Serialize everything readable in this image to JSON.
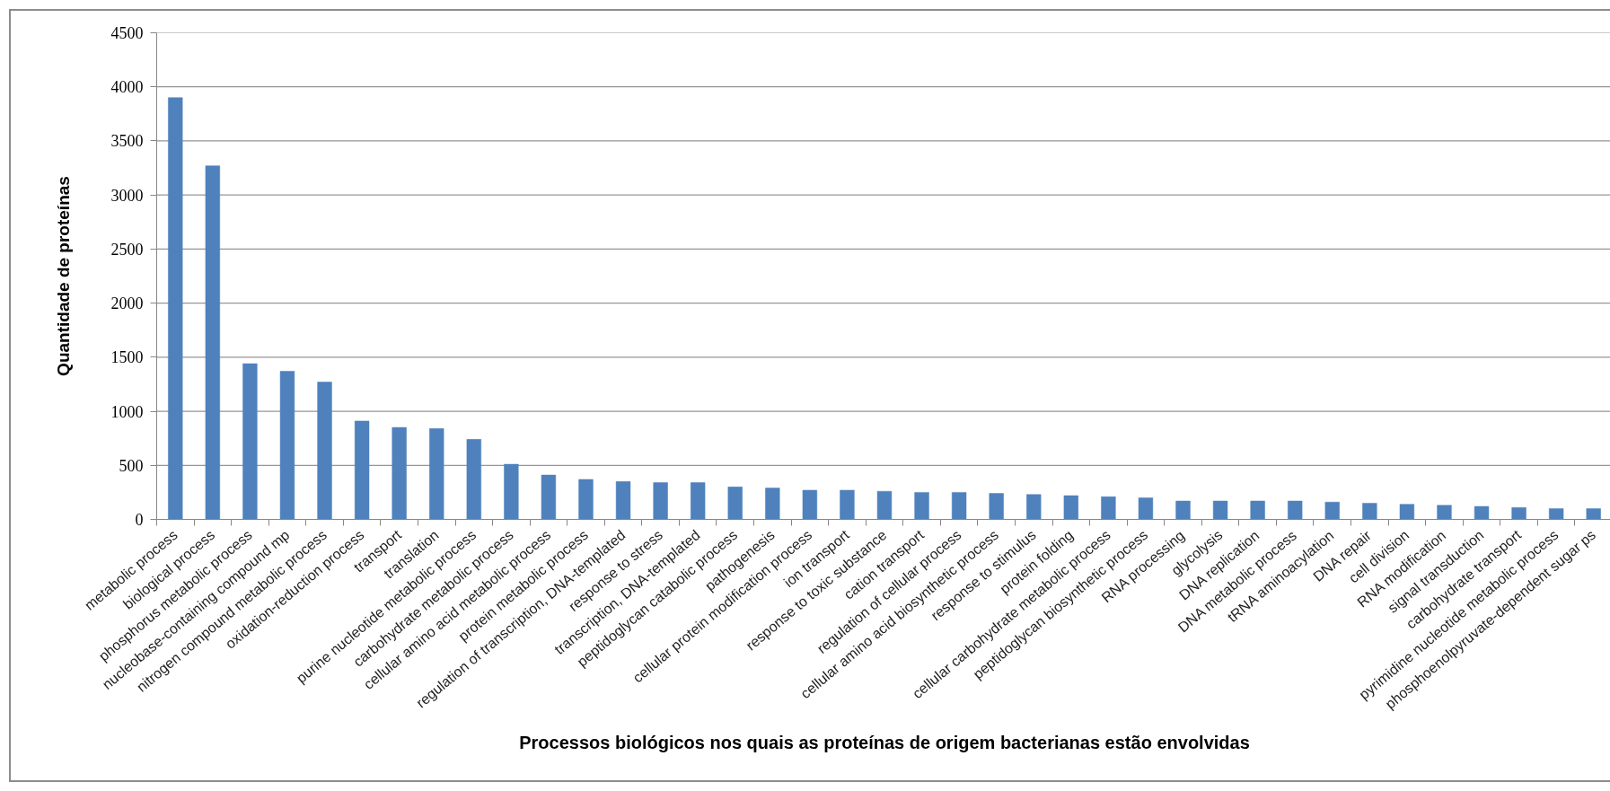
{
  "chart_data": {
    "type": "bar",
    "xlabel": "Processos biológicos nos quais as proteínas de origem bacterianas estão envolvidas",
    "ylabel": "Quantidade de proteínas",
    "categories": [
      "metabolic process",
      "biological process",
      "phosphorus metabolic process",
      "nucleobase-containing compound mp",
      "nitrogen compound metabolic process",
      "oxidation-reduction process",
      "transport",
      "translation",
      "purine nucleotide metabolic process",
      "carbohydrate metabolic process",
      "cellular amino acid metabolic process",
      "protein metabolic process",
      "regulation of transcription, DNA-templated",
      "response to stress",
      "transcription, DNA-templated",
      "peptidoglycan catabolic process",
      "pathogenesis",
      "cellular protein modification process",
      "ion transport",
      "response to toxic substance",
      "cation transport",
      "regulation of cellular process",
      "cellular amino acid biosynthetic process",
      "response to stimulus",
      "protein folding",
      "cellular carbohydrate metabolic process",
      "peptidoglycan biosynthetic process",
      "RNA processing",
      "glycolysis",
      "DNA replication",
      "DNA metabolic process",
      "tRNA aminoacylation",
      "DNA repair",
      "cell division",
      "RNA modification",
      "signal transduction",
      "carbohydrate transport",
      "pyrimidine nucleotide metabolic process",
      "phosphoenolpyruvate-dependent sugar ps"
    ],
    "values": [
      3900,
      3270,
      1440,
      1370,
      1270,
      910,
      850,
      840,
      740,
      510,
      410,
      370,
      350,
      340,
      340,
      300,
      290,
      270,
      270,
      260,
      250,
      250,
      240,
      230,
      220,
      210,
      200,
      170,
      170,
      170,
      170,
      160,
      150,
      140,
      130,
      120,
      110,
      100,
      100
    ],
    "color": "#4f81bd",
    "ylim": [
      0,
      4500
    ],
    "yticks": [
      0,
      500,
      1000,
      1500,
      2000,
      2500,
      3000,
      3500,
      4000,
      4500
    ],
    "grid": "y"
  }
}
